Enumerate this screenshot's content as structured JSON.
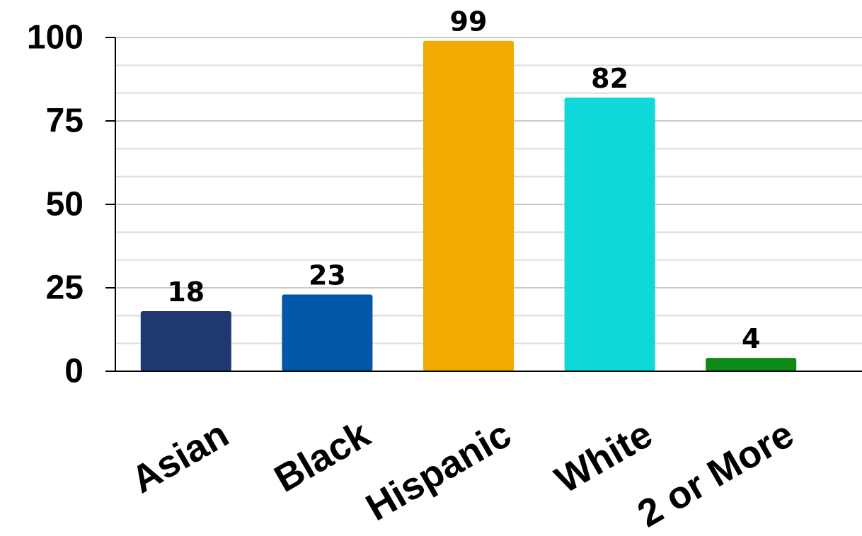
{
  "chart_data": {
    "type": "bar",
    "title": "",
    "xlabel": "",
    "ylabel": "",
    "categories": [
      "Asian",
      "Black",
      "Hispanic",
      "White",
      "2 or More"
    ],
    "values": [
      18,
      23,
      99,
      82,
      4
    ],
    "data_labels": [
      "18",
      "23",
      "99",
      "82",
      "4"
    ],
    "colors": [
      "#1f386f",
      "#0258a8",
      "#f2a900",
      "#0fd8d8",
      "#0b8a17"
    ],
    "ylim": [
      0,
      100
    ],
    "yticks": [
      0,
      25,
      50,
      75,
      100
    ],
    "ytick_labels": [
      "0",
      "25",
      "50",
      "75",
      "100"
    ],
    "minor_grid_step": 8.333,
    "grid": true,
    "legend": "none",
    "category_label_rotation_deg": -30
  }
}
